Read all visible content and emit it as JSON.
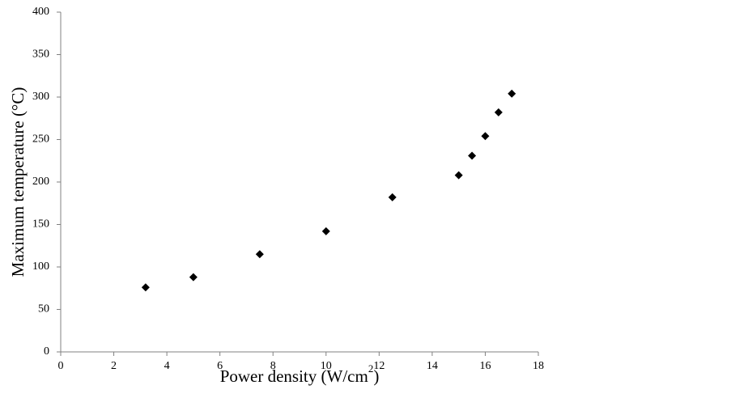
{
  "chart_data": {
    "type": "scatter",
    "title": "",
    "xlabel": "Power density (W/cm",
    "xlabel_sup": "2",
    "xlabel_end": ")",
    "ylabel": "Maximum temperature (°C)",
    "xlim": [
      0,
      18
    ],
    "ylim": [
      0,
      400
    ],
    "xticks": [
      0,
      2,
      4,
      6,
      8,
      10,
      12,
      14,
      16,
      18
    ],
    "yticks": [
      0,
      50,
      100,
      150,
      200,
      250,
      300,
      350,
      400
    ],
    "grid": false,
    "legend": "none",
    "marker": "diamond",
    "marker_color": "#000000",
    "series": [
      {
        "x": [
          3.2,
          5.0,
          7.5,
          10.0,
          12.5,
          15.0,
          15.5,
          16.0,
          16.5,
          17.0
        ],
        "y": [
          76,
          88,
          115,
          142,
          182,
          208,
          231,
          254,
          282,
          304
        ]
      }
    ]
  }
}
